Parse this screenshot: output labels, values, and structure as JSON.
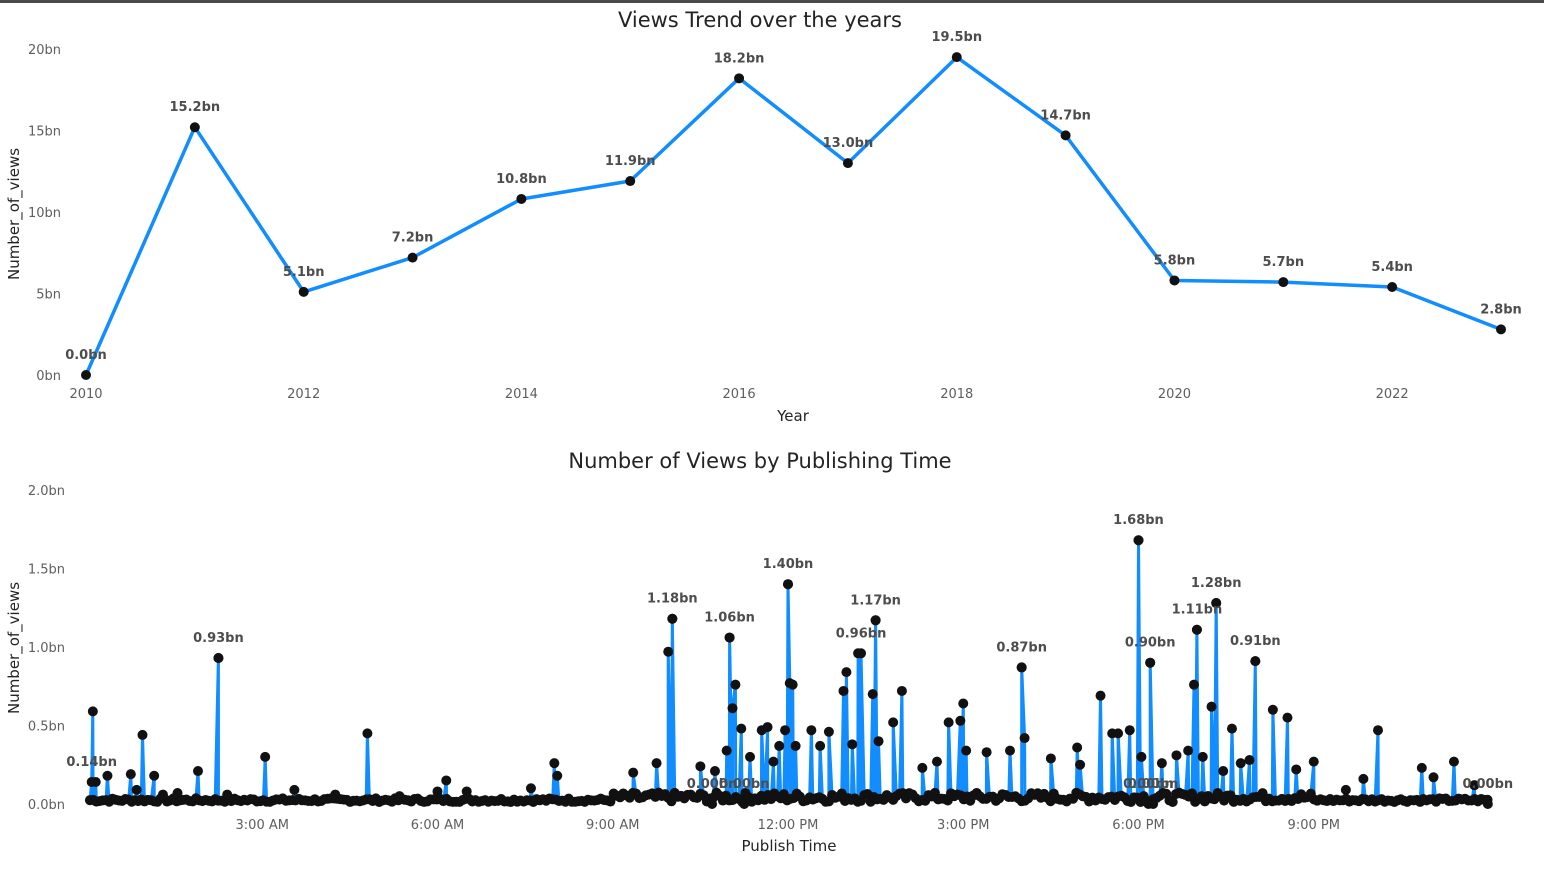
{
  "colors": {
    "line": "#118DFF",
    "marker": "#111111",
    "text": "#252423",
    "tick": "#605e5c",
    "label": "#4d4d4d"
  },
  "chart_data": [
    {
      "type": "line",
      "title": "Views Trend over the years",
      "xlabel": "Year",
      "ylabel": "Number_of_views",
      "x": [
        2010,
        2011,
        2012,
        2013,
        2014,
        2015,
        2016,
        2017,
        2018,
        2019,
        2020,
        2021,
        2022,
        2023
      ],
      "values": [
        0.0,
        15.2,
        5.1,
        7.2,
        10.8,
        11.9,
        18.2,
        13.0,
        19.5,
        14.7,
        5.8,
        5.7,
        5.4,
        2.8
      ],
      "data_labels": [
        "0.0bn",
        "15.2bn",
        "5.1bn",
        "7.2bn",
        "10.8bn",
        "11.9bn",
        "18.2bn",
        "13.0bn",
        "19.5bn",
        "14.7bn",
        "5.8bn",
        "5.7bn",
        "5.4bn",
        "2.8bn"
      ],
      "x_ticks": [
        "2010",
        "2012",
        "2014",
        "2016",
        "2018",
        "2020",
        "2022"
      ],
      "y_ticks": [
        "0bn",
        "5bn",
        "10bn",
        "15bn",
        "20bn"
      ],
      "ylim": [
        0,
        20
      ],
      "xlim": [
        2010,
        2023
      ],
      "grid": false,
      "unit": "bn"
    },
    {
      "type": "line",
      "title": "Number of Views by Publishing Time",
      "xlabel": "Publish Time",
      "ylabel": "Number_of_views",
      "x_ticks": [
        "3:00 AM",
        "6:00 AM",
        "9:00 AM",
        "12:00 PM",
        "3:00 PM",
        "6:00 PM",
        "9:00 PM"
      ],
      "y_ticks": [
        "0.0bn",
        "0.5bn",
        "1.0bn",
        "1.5bn",
        "2.0bn"
      ],
      "ylim": [
        0,
        2.0
      ],
      "xlim_hours": [
        0,
        24
      ],
      "grid": false,
      "unit": "bn",
      "labeled_points": [
        {
          "time": "0:05 AM",
          "hour": 0.08,
          "value": 0.14,
          "label": "0.14bn"
        },
        {
          "time": "2:15 AM",
          "hour": 2.25,
          "value": 0.93,
          "label": "0.93bn"
        },
        {
          "time": "10:01 AM",
          "hour": 10.02,
          "value": 1.18,
          "label": "1.18bn"
        },
        {
          "time": "10:40 AM",
          "hour": 10.7,
          "value": 0.0,
          "label": "0.00bn"
        },
        {
          "time": "11:00 AM",
          "hour": 11.0,
          "value": 1.06,
          "label": "1.06bn"
        },
        {
          "time": "11:15 AM",
          "hour": 11.25,
          "value": 0.0,
          "label": "0.00bn"
        },
        {
          "time": "12:00 PM",
          "hour": 12.0,
          "value": 1.4,
          "label": "1.40bn"
        },
        {
          "time": "1:15 PM",
          "hour": 13.25,
          "value": 0.96,
          "label": "0.96bn"
        },
        {
          "time": "1:30 PM",
          "hour": 13.5,
          "value": 1.17,
          "label": "1.17bn"
        },
        {
          "time": "4:00 PM",
          "hour": 16.0,
          "value": 0.87,
          "label": "0.87bn"
        },
        {
          "time": "6:00 PM",
          "hour": 18.0,
          "value": 1.68,
          "label": "1.68bn"
        },
        {
          "time": "6:10 PM",
          "hour": 18.17,
          "value": 0.0,
          "label": "0.00bn"
        },
        {
          "time": "6:15 PM",
          "hour": 18.2,
          "value": 0.9,
          "label": "0.90bn"
        },
        {
          "time": "6:15 PM",
          "hour": 18.25,
          "value": 0.0,
          "label": "0.00bn"
        },
        {
          "time": "7:00 PM",
          "hour": 19.0,
          "value": 1.11,
          "label": "1.11bn"
        },
        {
          "time": "7:20 PM",
          "hour": 19.33,
          "value": 1.28,
          "label": "1.28bn"
        },
        {
          "time": "8:00 PM",
          "hour": 20.0,
          "value": 0.91,
          "label": "0.91bn"
        },
        {
          "time": "11:59 PM",
          "hour": 23.98,
          "value": 0.0,
          "label": "0.00bn"
        }
      ],
      "spikes": [
        [
          0.1,
          0.59
        ],
        [
          0.15,
          0.14
        ],
        [
          0.35,
          0.18
        ],
        [
          0.75,
          0.19
        ],
        [
          0.85,
          0.09
        ],
        [
          0.95,
          0.44
        ],
        [
          1.15,
          0.18
        ],
        [
          1.3,
          0.06
        ],
        [
          1.55,
          0.07
        ],
        [
          1.9,
          0.21
        ],
        [
          2.25,
          0.93
        ],
        [
          2.4,
          0.06
        ],
        [
          3.05,
          0.3
        ],
        [
          3.55,
          0.09
        ],
        [
          4.25,
          0.06
        ],
        [
          4.8,
          0.45
        ],
        [
          5.35,
          0.05
        ],
        [
          6.0,
          0.08
        ],
        [
          6.15,
          0.15
        ],
        [
          6.5,
          0.08
        ],
        [
          7.6,
          0.1
        ],
        [
          8.0,
          0.26
        ],
        [
          8.05,
          0.18
        ],
        [
          9.35,
          0.2
        ],
        [
          9.75,
          0.26
        ],
        [
          9.95,
          0.97
        ],
        [
          10.02,
          1.18
        ],
        [
          10.5,
          0.24
        ],
        [
          10.75,
          0.21
        ],
        [
          10.95,
          0.34
        ],
        [
          11.0,
          1.06
        ],
        [
          11.05,
          0.61
        ],
        [
          11.1,
          0.76
        ],
        [
          11.2,
          0.48
        ],
        [
          11.35,
          0.3
        ],
        [
          11.55,
          0.47
        ],
        [
          11.65,
          0.49
        ],
        [
          11.75,
          0.27
        ],
        [
          11.85,
          0.37
        ],
        [
          11.95,
          0.47
        ],
        [
          12.0,
          1.4
        ],
        [
          12.03,
          0.77
        ],
        [
          12.08,
          0.76
        ],
        [
          12.13,
          0.37
        ],
        [
          12.4,
          0.47
        ],
        [
          12.55,
          0.37
        ],
        [
          12.7,
          0.46
        ],
        [
          12.95,
          0.72
        ],
        [
          13.0,
          0.84
        ],
        [
          13.1,
          0.38
        ],
        [
          13.2,
          0.96
        ],
        [
          13.45,
          0.7
        ],
        [
          13.5,
          1.17
        ],
        [
          13.55,
          0.4
        ],
        [
          13.8,
          0.52
        ],
        [
          13.95,
          0.72
        ],
        [
          14.3,
          0.23
        ],
        [
          14.55,
          0.27
        ],
        [
          14.75,
          0.52
        ],
        [
          14.95,
          0.53
        ],
        [
          15.0,
          0.64
        ],
        [
          15.05,
          0.34
        ],
        [
          15.4,
          0.33
        ],
        [
          15.8,
          0.34
        ],
        [
          16.0,
          0.87
        ],
        [
          16.05,
          0.42
        ],
        [
          16.5,
          0.29
        ],
        [
          16.95,
          0.36
        ],
        [
          17.0,
          0.25
        ],
        [
          17.35,
          0.69
        ],
        [
          17.55,
          0.45
        ],
        [
          17.65,
          0.45
        ],
        [
          17.85,
          0.47
        ],
        [
          18.0,
          1.68
        ],
        [
          18.05,
          0.3
        ],
        [
          18.2,
          0.9
        ],
        [
          18.4,
          0.26
        ],
        [
          18.65,
          0.31
        ],
        [
          18.85,
          0.34
        ],
        [
          18.95,
          0.76
        ],
        [
          19.0,
          1.11
        ],
        [
          19.1,
          0.3
        ],
        [
          19.25,
          0.62
        ],
        [
          19.33,
          1.28
        ],
        [
          19.45,
          0.21
        ],
        [
          19.6,
          0.48
        ],
        [
          19.75,
          0.26
        ],
        [
          19.9,
          0.28
        ],
        [
          20.0,
          0.91
        ],
        [
          20.3,
          0.6
        ],
        [
          20.55,
          0.55
        ],
        [
          20.7,
          0.22
        ],
        [
          21.0,
          0.27
        ],
        [
          21.55,
          0.09
        ],
        [
          21.85,
          0.16
        ],
        [
          22.1,
          0.47
        ],
        [
          22.85,
          0.23
        ],
        [
          23.05,
          0.17
        ],
        [
          23.4,
          0.27
        ],
        [
          23.75,
          0.12
        ]
      ],
      "baseline_value": 0.02
    }
  ]
}
